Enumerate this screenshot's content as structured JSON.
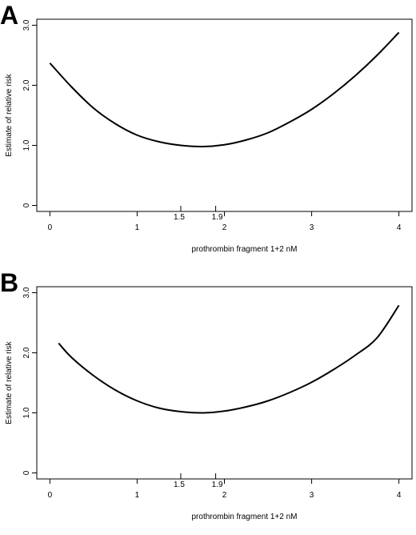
{
  "panels": [
    {
      "letter": "A"
    },
    {
      "letter": "B"
    }
  ],
  "chart_data": [
    {
      "type": "line",
      "title": "",
      "panel_label": "A",
      "xlabel": "prothrombin fragment 1+2 nM",
      "ylabel": "Estimate of relative risk",
      "xlim": [
        -0.15,
        4.15
      ],
      "ylim": [
        -0.1,
        3.1
      ],
      "xticks": [
        0,
        1,
        2,
        3,
        4
      ],
      "xtick_labels": [
        "0",
        "1",
        "2",
        "3",
        "4"
      ],
      "extra_xticks": [
        1.5,
        1.9
      ],
      "extra_xtick_labels": [
        "1.5",
        "1.9"
      ],
      "yticks": [
        0,
        1,
        2,
        3
      ],
      "ytick_labels": [
        "0",
        "1.0",
        "2.0",
        "3.0"
      ],
      "grid": false,
      "series": [
        {
          "x": [
            0,
            0.25,
            0.5,
            0.75,
            1.0,
            1.25,
            1.5,
            1.75,
            2.0,
            2.25,
            2.5,
            2.75,
            3.0,
            3.25,
            3.5,
            3.75,
            4.0
          ],
          "y": [
            2.37,
            1.97,
            1.62,
            1.36,
            1.17,
            1.06,
            1.0,
            0.98,
            1.01,
            1.09,
            1.21,
            1.39,
            1.6,
            1.86,
            2.16,
            2.5,
            2.88
          ]
        }
      ]
    },
    {
      "type": "line",
      "title": "",
      "panel_label": "B",
      "xlabel": "prothrombin fragment 1+2 nM",
      "ylabel": "Estimate of relative risk",
      "xlim": [
        -0.15,
        4.15
      ],
      "ylim": [
        -0.1,
        3.1
      ],
      "xticks": [
        0,
        1,
        2,
        3,
        4
      ],
      "xtick_labels": [
        "0",
        "1",
        "2",
        "3",
        "4"
      ],
      "extra_xticks": [
        1.5,
        1.9
      ],
      "extra_xtick_labels": [
        "1.5",
        "1.9"
      ],
      "yticks": [
        0,
        1,
        2,
        3
      ],
      "ytick_labels": [
        "0",
        "1.0",
        "2.0",
        "3.0"
      ],
      "grid": false,
      "series": [
        {
          "x": [
            0.1,
            0.25,
            0.5,
            0.75,
            1.0,
            1.25,
            1.5,
            1.75,
            2.0,
            2.25,
            2.5,
            2.75,
            3.0,
            3.25,
            3.5,
            3.75,
            4.0
          ],
          "y": [
            2.16,
            1.92,
            1.62,
            1.38,
            1.2,
            1.08,
            1.02,
            1.0,
            1.03,
            1.1,
            1.2,
            1.34,
            1.51,
            1.72,
            1.96,
            2.25,
            2.79
          ]
        }
      ]
    }
  ]
}
